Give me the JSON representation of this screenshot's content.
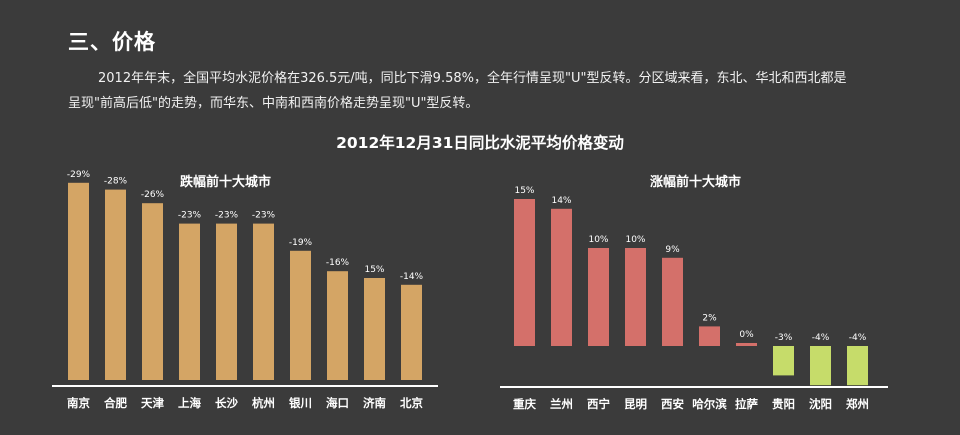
{
  "page": {
    "section_title": "三、价格",
    "paragraph": "2012年年末，全国平均水泥价格在326.5元/吨，同比下滑9.58%，全年行情呈现\"U\"型反转。分区域来看，东北、华北和西北都是呈现\"前高后低\"的走势，而华东、中南和西南价格走势呈现\"U\"型反转。",
    "chart_title": "2012年12月31日同比水泥平均价格变动"
  },
  "colors": {
    "decline": "#d4a565",
    "rise": "#d4706a",
    "negative_rise": "#c6dc6a",
    "axis": "#ffffff",
    "background": "#3b3b3b"
  },
  "chart_data": [
    {
      "type": "bar",
      "title": "跌幅前十大城市",
      "categories": [
        "南京",
        "合肥",
        "天津",
        "上海",
        "长沙",
        "杭州",
        "银川",
        "海口",
        "济南",
        "北京"
      ],
      "values": [
        -29,
        -28,
        -26,
        -23,
        -23,
        -23,
        -19,
        -16,
        15,
        -14
      ],
      "value_labels": [
        "-29%",
        "-28%",
        "-26%",
        "-23%",
        "-23%",
        "-23%",
        "-19%",
        "-16%",
        "15%",
        "-14%"
      ],
      "xlabel": "",
      "ylabel": ""
    },
    {
      "type": "bar",
      "title": "涨幅前十大城市",
      "categories": [
        "重庆",
        "兰州",
        "西宁",
        "昆明",
        "西安",
        "哈尔滨",
        "拉萨",
        "贵阳",
        "沈阳",
        "郑州"
      ],
      "values": [
        15,
        14,
        10,
        10,
        9,
        2,
        0,
        -3,
        -4,
        -4
      ],
      "value_labels": [
        "15%",
        "14%",
        "10%",
        "10%",
        "9%",
        "2%",
        "0%",
        "-3%",
        "-4%",
        "-4%"
      ],
      "xlabel": "",
      "ylabel": ""
    }
  ]
}
